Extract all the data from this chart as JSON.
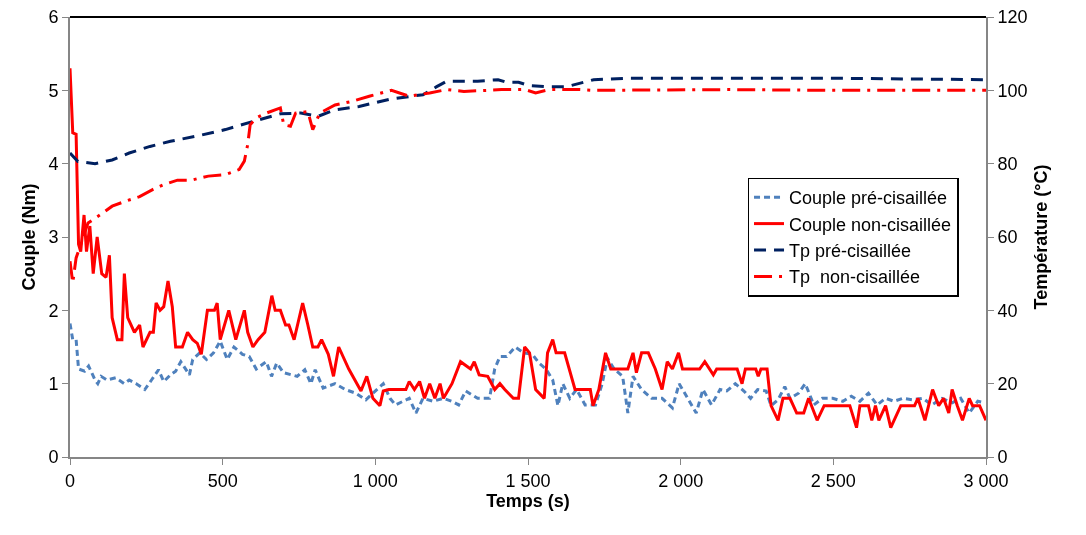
{
  "chart_data": {
    "type": "line",
    "xlabel": "Temps (s)",
    "ylabel": "Couple (Nm)",
    "y2label": "Température (°C)",
    "xlim": [
      0,
      3000
    ],
    "xticks": [
      0,
      500,
      {
        "value": 1000,
        "label": "1 000"
      },
      {
        "value": 1500,
        "label": "1 500"
      },
      {
        "value": 2000,
        "label": "2 000"
      },
      {
        "value": 2500,
        "label": "2 500"
      },
      {
        "value": 3000,
        "label": "3 000"
      }
    ],
    "ylim": [
      0,
      6
    ],
    "yticks": [
      0,
      1,
      2,
      3,
      4,
      5,
      6
    ],
    "y2lim": [
      0,
      120
    ],
    "y2ticks": [
      0,
      20,
      40,
      60,
      80,
      100,
      120
    ],
    "grid": false,
    "legend": "right",
    "marker": "none",
    "series": [
      {
        "name": "Couple pré-cisaillée",
        "color": "#4f81bd",
        "line_style": "dotted",
        "x": [
          0,
          9,
          20,
          28,
          48,
          61,
          82,
          91,
          102,
          121,
          150,
          178,
          194,
          217,
          245,
          267,
          290,
          307,
          329,
          346,
          363,
          391,
          402,
          425,
          447,
          470,
          492,
          515,
          537,
          565,
          587,
          610,
          643,
          660,
          677,
          699,
          744,
          769,
          789,
          803,
          829,
          868,
          902,
          936,
          969,
          992,
          1026,
          1048,
          1066,
          1111,
          1133,
          1156,
          1189,
          1223,
          1251,
          1273,
          1296,
          1335,
          1374,
          1391,
          1408,
          1430,
          1458,
          1486,
          1514,
          1536,
          1559,
          1581,
          1598,
          1614,
          1637,
          1659,
          1687,
          1721,
          1743,
          1760,
          1782,
          1810,
          1827,
          1844,
          1872,
          1905,
          1939,
          1973,
          1995,
          2023,
          2051,
          2073,
          2101,
          2129,
          2151,
          2179,
          2207,
          2229,
          2252,
          2280,
          2296,
          2319,
          2341,
          2358,
          2386,
          2408,
          2436,
          2464,
          2498,
          2531,
          2559,
          2587,
          2615,
          2643,
          2671,
          2699,
          2727,
          2760,
          2794,
          2822,
          2856,
          2889,
          2917,
          2945,
          2973,
          2995
        ],
        "values": [
          1.82,
          1.6,
          1.6,
          1.2,
          1.17,
          1.24,
          1.05,
          1.0,
          1.1,
          1.05,
          1.08,
          1.0,
          1.05,
          1.0,
          0.92,
          1.05,
          1.19,
          1.03,
          1.12,
          1.17,
          1.3,
          1.12,
          1.33,
          1.42,
          1.33,
          1.42,
          1.58,
          1.33,
          1.5,
          1.4,
          1.37,
          1.2,
          1.3,
          1.1,
          1.28,
          1.15,
          1.1,
          1.19,
          1.0,
          1.19,
          0.94,
          1.0,
          0.92,
          0.87,
          0.78,
          0.87,
          1.0,
          0.8,
          0.71,
          0.8,
          0.6,
          0.8,
          0.76,
          0.8,
          0.76,
          0.71,
          0.9,
          0.8,
          0.8,
          1.2,
          1.37,
          1.37,
          1.5,
          1.42,
          1.4,
          1.28,
          1.2,
          1.05,
          0.7,
          1.0,
          0.8,
          0.92,
          0.71,
          0.71,
          1.0,
          1.35,
          1.2,
          1.1,
          0.6,
          1.1,
          0.92,
          0.8,
          0.8,
          0.67,
          1.0,
          0.8,
          0.6,
          0.92,
          0.71,
          0.92,
          0.9,
          1.0,
          0.9,
          0.8,
          0.92,
          0.9,
          0.7,
          0.78,
          0.96,
          0.8,
          0.87,
          1.0,
          0.71,
          0.8,
          0.8,
          0.76,
          0.83,
          0.76,
          0.87,
          0.71,
          0.8,
          0.76,
          0.8,
          0.78,
          0.8,
          0.71,
          0.8,
          0.74,
          0.8,
          0.6,
          0.76,
          0.74
        ]
      },
      {
        "name": "Couple non-cisaillée",
        "color": "#ff0000",
        "line_style": "solid",
        "x": [
          0,
          9,
          20,
          28,
          35,
          46,
          54,
          65,
          76,
          89,
          104,
          118,
          129,
          138,
          155,
          170,
          178,
          189,
          211,
          228,
          239,
          262,
          273,
          282,
          295,
          307,
          321,
          335,
          346,
          368,
          385,
          402,
          417,
          430,
          450,
          473,
          482,
          492,
          520,
          543,
          571,
          582,
          599,
          616,
          638,
          661,
          672,
          689,
          706,
          717,
          734,
          762,
          779,
          795,
          812,
          824,
          846,
          863,
          880,
          913,
          953,
          972,
          992,
          1015,
          1026,
          1044,
          1100,
          1111,
          1128,
          1145,
          1161,
          1178,
          1195,
          1212,
          1223,
          1251,
          1279,
          1312,
          1324,
          1340,
          1368,
          1391,
          1408,
          1424,
          1452,
          1469,
          1489,
          1505,
          1525,
          1553,
          1564,
          1581,
          1592,
          1620,
          1654,
          1704,
          1713,
          1732,
          1754,
          1771,
          1827,
          1844,
          1855,
          1872,
          1894,
          1917,
          1939,
          1956,
          1973,
          1993,
          2006,
          2062,
          2079,
          2107,
          2118,
          2185,
          2201,
          2212,
          2246,
          2254,
          2263,
          2283,
          2296,
          2319,
          2335,
          2358,
          2380,
          2403,
          2419,
          2447,
          2470,
          2554,
          2576,
          2587,
          2615,
          2626,
          2638,
          2649,
          2671,
          2688,
          2721,
          2766,
          2777,
          2800,
          2825,
          2845,
          2861,
          2878,
          2889,
          2906,
          2923,
          2945,
          2956,
          2979,
          3000
        ],
        "values": [
          5.3,
          4.42,
          4.4,
          2.9,
          2.8,
          3.3,
          2.8,
          3.15,
          2.5,
          3.0,
          2.5,
          2.45,
          2.75,
          1.9,
          1.6,
          1.6,
          2.5,
          1.9,
          1.7,
          1.8,
          1.5,
          1.7,
          1.7,
          2.1,
          2.0,
          2.05,
          2.4,
          2.05,
          1.5,
          1.5,
          1.7,
          1.6,
          1.55,
          1.4,
          2.0,
          2.0,
          2.1,
          1.6,
          2.0,
          1.6,
          2.0,
          1.7,
          1.5,
          1.6,
          1.7,
          2.2,
          2.0,
          2.0,
          1.8,
          1.8,
          1.6,
          2.1,
          1.8,
          1.5,
          1.5,
          1.6,
          1.4,
          1.1,
          1.5,
          1.2,
          0.9,
          1.1,
          0.8,
          0.7,
          0.9,
          0.92,
          0.92,
          1.03,
          0.92,
          1.03,
          0.8,
          1.0,
          0.8,
          1.0,
          0.8,
          1.0,
          1.3,
          1.2,
          1.3,
          1.12,
          1.1,
          0.92,
          1.0,
          0.92,
          0.8,
          0.8,
          1.5,
          1.42,
          0.92,
          0.8,
          1.42,
          1.6,
          1.42,
          1.42,
          0.92,
          0.92,
          0.7,
          0.92,
          1.42,
          1.2,
          1.2,
          1.42,
          1.15,
          1.42,
          1.42,
          1.2,
          0.92,
          1.3,
          1.2,
          1.42,
          1.2,
          1.2,
          1.3,
          1.12,
          1.2,
          1.2,
          1.0,
          1.2,
          1.2,
          1.1,
          1.2,
          1.2,
          0.7,
          0.5,
          0.8,
          0.8,
          0.6,
          0.6,
          0.8,
          0.5,
          0.7,
          0.7,
          0.4,
          0.7,
          0.7,
          0.5,
          0.7,
          0.5,
          0.7,
          0.4,
          0.7,
          0.7,
          0.8,
          0.5,
          0.92,
          0.7,
          0.8,
          0.6,
          0.92,
          0.7,
          0.5,
          0.8,
          0.7,
          0.7,
          0.5
        ]
      },
      {
        "name": "Tp pré-cisaillée",
        "color": "#002060",
        "line_style": "dashed",
        "axis": "y2",
        "x": [
          0,
          26,
          82,
          138,
          194,
          262,
          329,
          419,
          509,
          599,
          689,
          756,
          812,
          868,
          947,
          1048,
          1156,
          1201,
          1234,
          1335,
          1402,
          1430,
          1469,
          1503,
          1559,
          1626,
          1715,
          1827,
          2151,
          2500,
          3000
        ],
        "values": [
          82.9,
          80.6,
          80,
          81,
          82.9,
          84.7,
          86.1,
          87.6,
          89.3,
          91.5,
          93.6,
          93.8,
          92.9,
          94.7,
          95.6,
          97.6,
          98.8,
          101,
          102.5,
          102.5,
          102.9,
          102.2,
          102.2,
          101.3,
          101,
          101,
          102.9,
          103.3,
          103.3,
          103.3,
          102.9
        ]
      },
      {
        "name": "Tp  non-cisaillée",
        "color": "#ff0000",
        "line_style": "dashdot",
        "axis": "y2",
        "x": [
          0,
          9,
          20,
          37,
          59,
          98,
          138,
          183,
          228,
          272,
          307,
          352,
          397,
          453,
          509,
          554,
          571,
          582,
          590,
          610,
          643,
          689,
          700,
          722,
          739,
          779,
          795,
          818,
          868,
          924,
          980,
          1053,
          1111,
          1178,
          1234,
          1290,
          1368,
          1413,
          1491,
          1525,
          1570,
          1670,
          1715,
          2151,
          2500,
          3000
        ],
        "values": [
          53.4,
          47.5,
          54.3,
          58.4,
          63.8,
          66,
          68.4,
          69.8,
          71,
          73,
          74.3,
          75.5,
          75.5,
          76.6,
          77,
          78.4,
          80.7,
          85.2,
          90.6,
          92.5,
          93.8,
          95.2,
          90.6,
          90.2,
          93.8,
          94.2,
          89.3,
          93.8,
          96,
          97,
          98.4,
          100,
          98.4,
          99.3,
          100.2,
          99.7,
          100,
          100.2,
          100.2,
          99.3,
          100.2,
          100.2,
          100,
          100.2,
          100,
          100
        ]
      }
    ]
  }
}
